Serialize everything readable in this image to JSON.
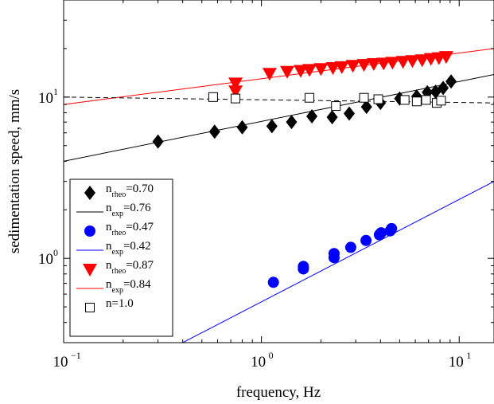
{
  "chart_data": {
    "type": "scatter",
    "xlabel": "frequency, Hz",
    "ylabel": "sedimentation speed, mm/s",
    "xscale": "log",
    "yscale": "log",
    "xlim": [
      0.1,
      15
    ],
    "ylim": [
      0.3,
      40
    ],
    "x_ticks": [
      {
        "base": "10",
        "exp": "−1",
        "value": 0.1
      },
      {
        "base": "10",
        "exp": "0",
        "value": 1
      },
      {
        "base": "10",
        "exp": "1",
        "value": 10
      }
    ],
    "y_ticks": [
      {
        "base": "10",
        "exp": "0",
        "value": 1
      },
      {
        "base": "10",
        "exp": "1",
        "value": 10
      }
    ],
    "legend_position": "bottom-left",
    "series": [
      {
        "kind": "markers",
        "marker": "diamond",
        "color": "#000000",
        "legend_main": "n",
        "legend_sub": "rheo",
        "legend_tail": "=0.70",
        "points": [
          [
            0.3,
            5.3
          ],
          [
            0.58,
            6.1
          ],
          [
            0.8,
            6.5
          ],
          [
            1.13,
            6.6
          ],
          [
            1.42,
            7.0
          ],
          [
            1.8,
            7.6
          ],
          [
            2.28,
            7.5
          ],
          [
            2.78,
            7.9
          ],
          [
            3.4,
            8.7
          ],
          [
            4.0,
            9.2
          ],
          [
            5.0,
            9.8
          ],
          [
            6.1,
            10.1
          ],
          [
            6.9,
            10.7
          ],
          [
            7.6,
            10.8
          ],
          [
            8.3,
            11.4
          ],
          [
            9.1,
            12.5
          ]
        ]
      },
      {
        "kind": "line",
        "color": "#000000",
        "dash": "",
        "legend_main": "n",
        "legend_sub": "exp",
        "legend_tail": "=0.76",
        "line": {
          "x0": 0.1,
          "y0": 4.0,
          "x1": 15,
          "y1": 13.8
        }
      },
      {
        "kind": "markers",
        "marker": "circle",
        "color": "#0000ff",
        "legend_main": "n",
        "legend_sub": "rheo",
        "legend_tail": "=0.47",
        "points": [
          [
            1.15,
            0.71
          ],
          [
            1.63,
            0.86
          ],
          [
            1.63,
            0.89
          ],
          [
            2.33,
            1.01
          ],
          [
            2.33,
            1.07
          ],
          [
            2.83,
            1.17
          ],
          [
            3.38,
            1.29
          ],
          [
            3.95,
            1.4
          ],
          [
            4.03,
            1.44
          ],
          [
            4.48,
            1.48
          ],
          [
            4.55,
            1.53
          ]
        ]
      },
      {
        "kind": "line",
        "color": "#0000ff",
        "dash": "",
        "legend_main": "n",
        "legend_sub": "exp",
        "legend_tail": "=0.42",
        "line": {
          "x0": 0.3,
          "y0": 0.25,
          "x1": 15,
          "y1": 3.0
        }
      },
      {
        "kind": "markers",
        "marker": "triangle-down",
        "color": "#ff0000",
        "legend_main": "n",
        "legend_sub": "rheo",
        "legend_tail": "=0.87",
        "points": [
          [
            0.74,
            12.2
          ],
          [
            0.74,
            10.9
          ],
          [
            1.1,
            14.0
          ],
          [
            1.35,
            14.4
          ],
          [
            1.58,
            14.6
          ],
          [
            1.75,
            14.8
          ],
          [
            2.0,
            15.0
          ],
          [
            2.3,
            15.2
          ],
          [
            2.55,
            15.4
          ],
          [
            2.9,
            15.7
          ],
          [
            3.3,
            15.9
          ],
          [
            3.7,
            16.1
          ],
          [
            4.15,
            16.2
          ],
          [
            4.6,
            16.4
          ],
          [
            5.2,
            16.6
          ],
          [
            5.8,
            16.8
          ],
          [
            6.5,
            17.0
          ],
          [
            7.2,
            17.3
          ],
          [
            7.9,
            17.5
          ],
          [
            8.6,
            17.8
          ]
        ]
      },
      {
        "kind": "line",
        "color": "#ff0000",
        "dash": "",
        "legend_main": "n",
        "legend_sub": "exp",
        "legend_tail": "=0.84",
        "line": {
          "x0": 0.1,
          "y0": 9.0,
          "x1": 15,
          "y1": 20.0
        }
      },
      {
        "kind": "markers",
        "marker": "square",
        "color": "#000000",
        "legend_main": "n=1.0",
        "legend_sub": "",
        "legend_tail": "",
        "points": [
          [
            0.57,
            10.0
          ],
          [
            0.74,
            9.8
          ],
          [
            1.75,
            9.9
          ],
          [
            2.38,
            8.8
          ],
          [
            3.3,
            9.9
          ],
          [
            3.9,
            9.7
          ],
          [
            5.3,
            9.6
          ],
          [
            6.1,
            9.4
          ],
          [
            6.8,
            9.6
          ],
          [
            7.7,
            9.2
          ],
          [
            8.1,
            9.5
          ]
        ]
      },
      {
        "kind": "line",
        "color": "#000000",
        "dash": "6,4",
        "legend": false,
        "line": {
          "x0": 0.1,
          "y0": 10.0,
          "x1": 15,
          "y1": 9.2
        }
      }
    ]
  }
}
